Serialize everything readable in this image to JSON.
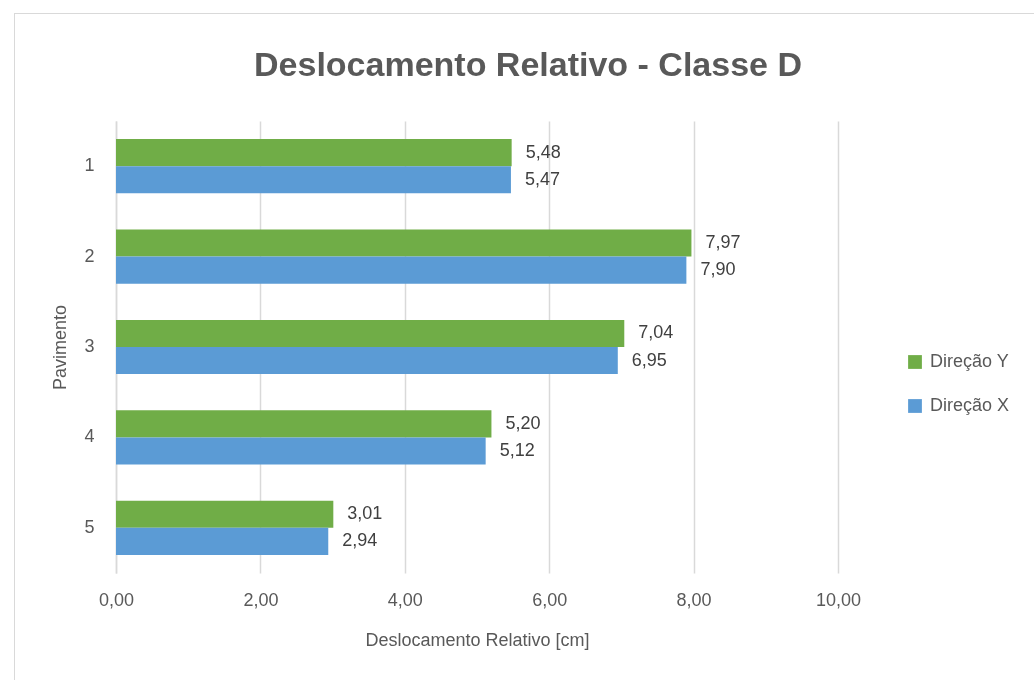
{
  "chart_data": {
    "type": "bar",
    "orientation": "horizontal",
    "title": "Deslocamento Relativo - Classe D",
    "xlabel": "Deslocamento Relativo [cm]",
    "ylabel": "Pavimento",
    "categories": [
      "1",
      "2",
      "3",
      "4",
      "5"
    ],
    "series": [
      {
        "name": "Direção Y",
        "color": "#70ad47",
        "values": [
          5.48,
          7.97,
          7.04,
          5.2,
          3.01
        ],
        "value_labels": [
          "5,48",
          "7,97",
          "7,04",
          "5,20",
          "3,01"
        ]
      },
      {
        "name": "Direção X",
        "color": "#5b9bd5",
        "values": [
          5.47,
          7.9,
          6.95,
          5.12,
          2.94
        ],
        "value_labels": [
          "5,47",
          "7,90",
          "6,95",
          "5,12",
          "2,94"
        ]
      }
    ],
    "xlim": [
      0,
      10
    ],
    "xticks": [
      {
        "value": 0,
        "label": "0,00"
      },
      {
        "value": 2,
        "label": "2,00"
      },
      {
        "value": 4,
        "label": "4,00"
      },
      {
        "value": 6,
        "label": "6,00"
      },
      {
        "value": 8,
        "label": "8,00"
      },
      {
        "value": 10,
        "label": "10,00"
      }
    ],
    "grid": "x",
    "legend": "right"
  }
}
